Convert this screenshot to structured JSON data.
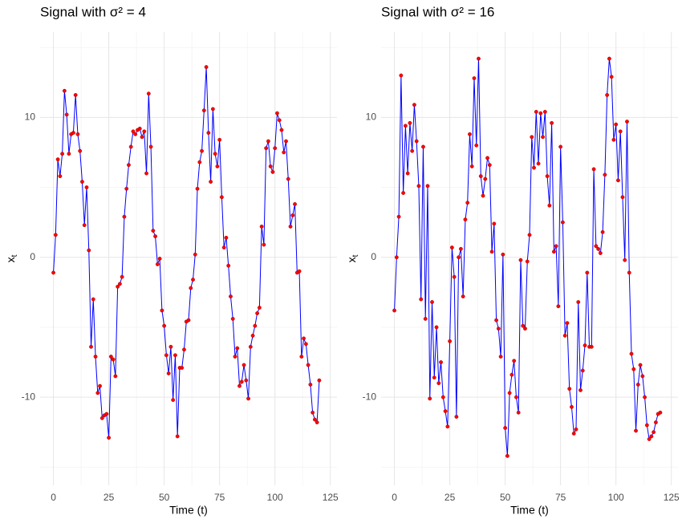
{
  "chart_data": [
    {
      "type": "line",
      "title": "Signal with σ² = 4",
      "xlabel": "Time (t)",
      "ylabel": "x",
      "ylabel_sub": "t",
      "x": [
        0,
        1,
        2,
        3,
        4,
        5,
        6,
        7,
        8,
        9,
        10,
        11,
        12,
        13,
        14,
        15,
        16,
        17,
        18,
        19,
        20,
        21,
        22,
        23,
        24,
        25,
        26,
        27,
        28,
        29,
        30,
        31,
        32,
        33,
        34,
        35,
        36,
        37,
        38,
        39,
        40,
        41,
        42,
        43,
        44,
        45,
        46,
        47,
        48,
        49,
        50,
        51,
        52,
        53,
        54,
        55,
        56,
        57,
        58,
        59,
        60,
        61,
        62,
        63,
        64,
        65,
        66,
        67,
        68,
        69,
        70,
        71,
        72,
        73,
        74,
        75,
        76,
        77,
        78,
        79,
        80,
        81,
        82,
        83,
        84,
        85,
        86,
        87,
        88,
        89,
        90,
        91,
        92,
        93,
        94,
        95,
        96,
        97,
        98,
        99,
        100,
        101,
        102,
        103,
        104,
        105,
        106,
        107,
        108,
        109,
        110,
        111,
        112,
        113,
        114,
        115,
        116,
        117,
        118,
        119,
        120
      ],
      "values": [
        -1.1,
        1.6,
        7.0,
        5.8,
        7.4,
        11.9,
        10.2,
        7.4,
        8.8,
        8.9,
        11.6,
        8.8,
        7.6,
        5.4,
        2.3,
        5.0,
        0.5,
        -6.4,
        -3.0,
        -7.1,
        -9.7,
        -9.2,
        -11.5,
        -11.3,
        -11.2,
        -12.9,
        -7.1,
        -7.3,
        -8.5,
        -2.1,
        -1.9,
        -1.4,
        2.9,
        4.9,
        6.6,
        7.9,
        9.0,
        8.8,
        9.1,
        9.2,
        8.6,
        9.0,
        6.0,
        11.7,
        7.9,
        1.9,
        1.5,
        -0.5,
        -0.1,
        -3.8,
        -4.9,
        -7.0,
        -8.3,
        -6.4,
        -10.2,
        -7.0,
        -12.8,
        -7.9,
        -7.9,
        -6.6,
        -4.6,
        -4.5,
        -2.2,
        -1.6,
        0.2,
        4.9,
        6.8,
        7.6,
        10.5,
        13.6,
        8.9,
        5.4,
        10.6,
        7.4,
        6.5,
        8.4,
        4.3,
        0.7,
        1.4,
        -0.6,
        -2.8,
        -4.4,
        -7.1,
        -6.5,
        -9.2,
        -8.9,
        -7.7,
        -8.8,
        -10.1,
        -6.4,
        -5.6,
        -4.9,
        -4.0,
        -3.6,
        2.2,
        0.9,
        7.8,
        8.3,
        6.5,
        6.1,
        7.8,
        10.3,
        9.8,
        9.1,
        7.5,
        8.3,
        5.6,
        2.2,
        3.0,
        3.8,
        -1.1,
        -1.0,
        -7.1,
        -5.8,
        -6.2,
        -7.7,
        -9.1,
        -11.1,
        -11.6,
        -11.8,
        -8.8
      ],
      "line_color": "#0000ff",
      "point_color": "#ff0000",
      "xlim": [
        -6,
        128
      ],
      "ylim": [
        -16.3,
        16.1
      ],
      "xticks": [
        0,
        25,
        50,
        75,
        100,
        125
      ],
      "yticks": [
        -10,
        0,
        10
      ],
      "x_minor_ticks": [
        12.5,
        37.5,
        62.5,
        87.5,
        112.5
      ],
      "y_minor_ticks": [
        -15,
        -5,
        5,
        15
      ],
      "grid": true
    },
    {
      "type": "line",
      "title": "Signal with σ² = 16",
      "xlabel": "Time (t)",
      "ylabel": "x",
      "ylabel_sub": "t",
      "x": [
        0,
        1,
        2,
        3,
        4,
        5,
        6,
        7,
        8,
        9,
        10,
        11,
        12,
        13,
        14,
        15,
        16,
        17,
        18,
        19,
        20,
        21,
        22,
        23,
        24,
        25,
        26,
        27,
        28,
        29,
        30,
        31,
        32,
        33,
        34,
        35,
        36,
        37,
        38,
        39,
        40,
        41,
        42,
        43,
        44,
        45,
        46,
        47,
        48,
        49,
        50,
        51,
        52,
        53,
        54,
        55,
        56,
        57,
        58,
        59,
        60,
        61,
        62,
        63,
        64,
        65,
        66,
        67,
        68,
        69,
        70,
        71,
        72,
        73,
        74,
        75,
        76,
        77,
        78,
        79,
        80,
        81,
        82,
        83,
        84,
        85,
        86,
        87,
        88,
        89,
        90,
        91,
        92,
        93,
        94,
        95,
        96,
        97,
        98,
        99,
        100,
        101,
        102,
        103,
        104,
        105,
        106,
        107,
        108,
        109,
        110,
        111,
        112,
        113,
        114,
        115,
        116,
        117,
        118,
        119,
        120
      ],
      "values": [
        -3.8,
        0.0,
        2.9,
        13.0,
        4.6,
        9.4,
        6.0,
        9.6,
        7.6,
        10.9,
        8.3,
        5.1,
        -3.0,
        7.9,
        -4.4,
        5.1,
        -10.1,
        -3.2,
        -8.6,
        -5.0,
        -9.0,
        -7.5,
        -10.0,
        -11.0,
        -12.1,
        -6.0,
        0.7,
        -1.4,
        -11.4,
        0.0,
        0.6,
        -2.8,
        2.7,
        3.9,
        8.8,
        6.5,
        12.8,
        8.0,
        14.2,
        5.8,
        4.4,
        5.6,
        7.1,
        6.6,
        0.4,
        2.4,
        -4.5,
        -5.1,
        -7.1,
        0.2,
        -12.2,
        -14.2,
        -9.7,
        -8.4,
        -7.4,
        -10.0,
        -11.1,
        -0.2,
        -4.9,
        -5.1,
        -0.3,
        1.6,
        8.6,
        6.4,
        10.4,
        6.7,
        10.3,
        8.6,
        10.4,
        5.8,
        3.7,
        9.6,
        0.4,
        0.8,
        -3.5,
        7.9,
        2.5,
        -5.6,
        -4.7,
        -9.4,
        -10.7,
        -12.6,
        -12.3,
        -3.2,
        -9.5,
        -8.1,
        -6.3,
        -1.1,
        -6.4,
        -6.4,
        6.3,
        0.8,
        0.6,
        0.3,
        1.8,
        5.9,
        11.6,
        14.2,
        12.9,
        8.4,
        9.5,
        5.5,
        9.0,
        4.3,
        -0.2,
        9.7,
        -1.1,
        -6.9,
        -8.0,
        -12.4,
        -9.1,
        -7.7,
        -8.5,
        -10.0,
        -12.0,
        -13.0,
        -12.8,
        -12.5,
        -11.8,
        -11.2,
        -11.1
      ],
      "line_color": "#0000ff",
      "point_color": "#ff0000",
      "xlim": [
        -6,
        128
      ],
      "ylim": [
        -16.3,
        16.1
      ],
      "xticks": [
        0,
        25,
        50,
        75,
        100,
        125
      ],
      "yticks": [
        -10,
        0,
        10
      ],
      "x_minor_ticks": [
        12.5,
        37.5,
        62.5,
        87.5,
        112.5
      ],
      "y_minor_ticks": [
        -15,
        -5,
        5,
        15
      ],
      "grid": true
    }
  ]
}
